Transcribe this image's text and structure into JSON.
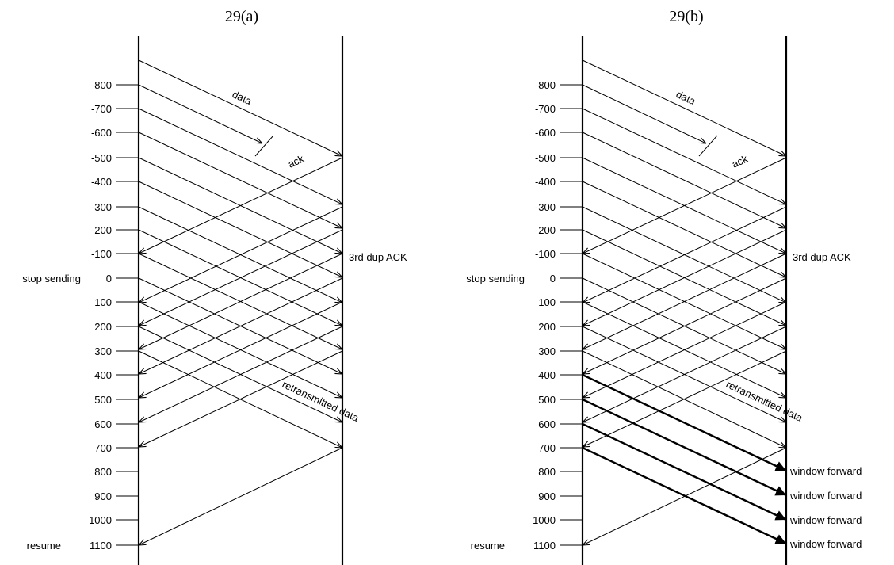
{
  "panels": [
    {
      "id": "a",
      "caption": "29(a)",
      "ticks": [
        "-800",
        "-700",
        "-600",
        "-500",
        "-400",
        "-300",
        "-200",
        "-100",
        "0",
        "100",
        "200",
        "300",
        "400",
        "500",
        "600",
        "700",
        "800",
        "900",
        "1000",
        "1100"
      ],
      "side_labels": [
        {
          "tick": "0",
          "text": "stop sending"
        },
        {
          "tick": "1100",
          "text": "resume"
        }
      ],
      "labels": {
        "data": "data",
        "ack": "ack",
        "dup_ack": "3rd dup ACK",
        "retransmitted": "retransmitted data"
      },
      "window_forward": []
    },
    {
      "id": "b",
      "caption": "29(b)",
      "ticks": [
        "-800",
        "-700",
        "-600",
        "-500",
        "-400",
        "-300",
        "-200",
        "-100",
        "0",
        "100",
        "200",
        "300",
        "400",
        "500",
        "600",
        "700",
        "800",
        "900",
        "1000",
        "1100"
      ],
      "side_labels": [
        {
          "tick": "0",
          "text": "stop sending"
        },
        {
          "tick": "1100",
          "text": "resume"
        }
      ],
      "labels": {
        "data": "data",
        "ack": "ack",
        "dup_ack": "3rd dup ACK",
        "retransmitted": "retransmitted data"
      },
      "window_forward": [
        "window forward",
        "window forward",
        "window forward",
        "window forward"
      ]
    }
  ]
}
